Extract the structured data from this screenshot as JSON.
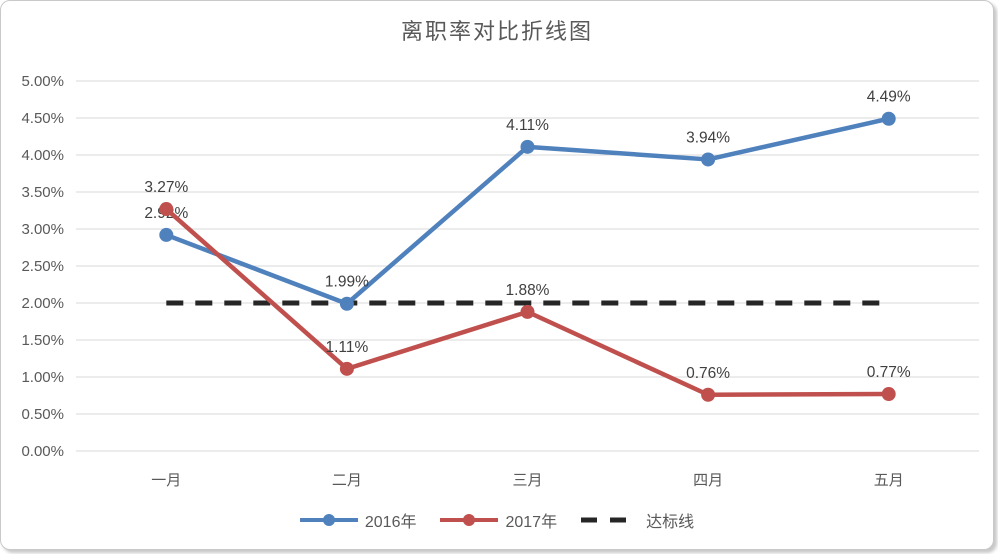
{
  "colors": {
    "series_2016": "#4F81BD",
    "series_2017": "#C0504D",
    "target_line": "#262626",
    "gridline": "#D9D9D9",
    "axis_text": "#595959",
    "data_label_text": "#404040",
    "title_text": "#595959",
    "frame_border": "#C9C9C9",
    "background": "#FFFFFF"
  },
  "chart_data": {
    "type": "line",
    "title": "离职率对比折线图",
    "categories": [
      "一月",
      "二月",
      "三月",
      "四月",
      "五月"
    ],
    "series": [
      {
        "name": "2016年",
        "color": "#4F81BD",
        "dashed": false,
        "values": [
          2.92,
          1.99,
          4.11,
          3.94,
          4.49
        ],
        "labels": [
          "2.92%",
          "1.99%",
          "4.11%",
          "3.94%",
          "4.49%"
        ]
      },
      {
        "name": "2017年",
        "color": "#C0504D",
        "dashed": false,
        "values": [
          3.27,
          1.11,
          1.88,
          0.76,
          0.77
        ],
        "labels": [
          "3.27%",
          "1.11%",
          "1.88%",
          "0.76%",
          "0.77%"
        ]
      },
      {
        "name": "达标线",
        "color": "#262626",
        "dashed": true,
        "values": [
          2.0,
          2.0,
          2.0,
          2.0,
          2.0
        ],
        "labels": null
      }
    ],
    "ylim": [
      0,
      5
    ],
    "ytick_step": 0.5,
    "ytick_labels": [
      "0.00%",
      "0.50%",
      "1.00%",
      "1.50%",
      "2.00%",
      "2.50%",
      "3.00%",
      "3.50%",
      "4.00%",
      "4.50%",
      "5.00%"
    ],
    "grid": true,
    "legend_position": "bottom"
  }
}
